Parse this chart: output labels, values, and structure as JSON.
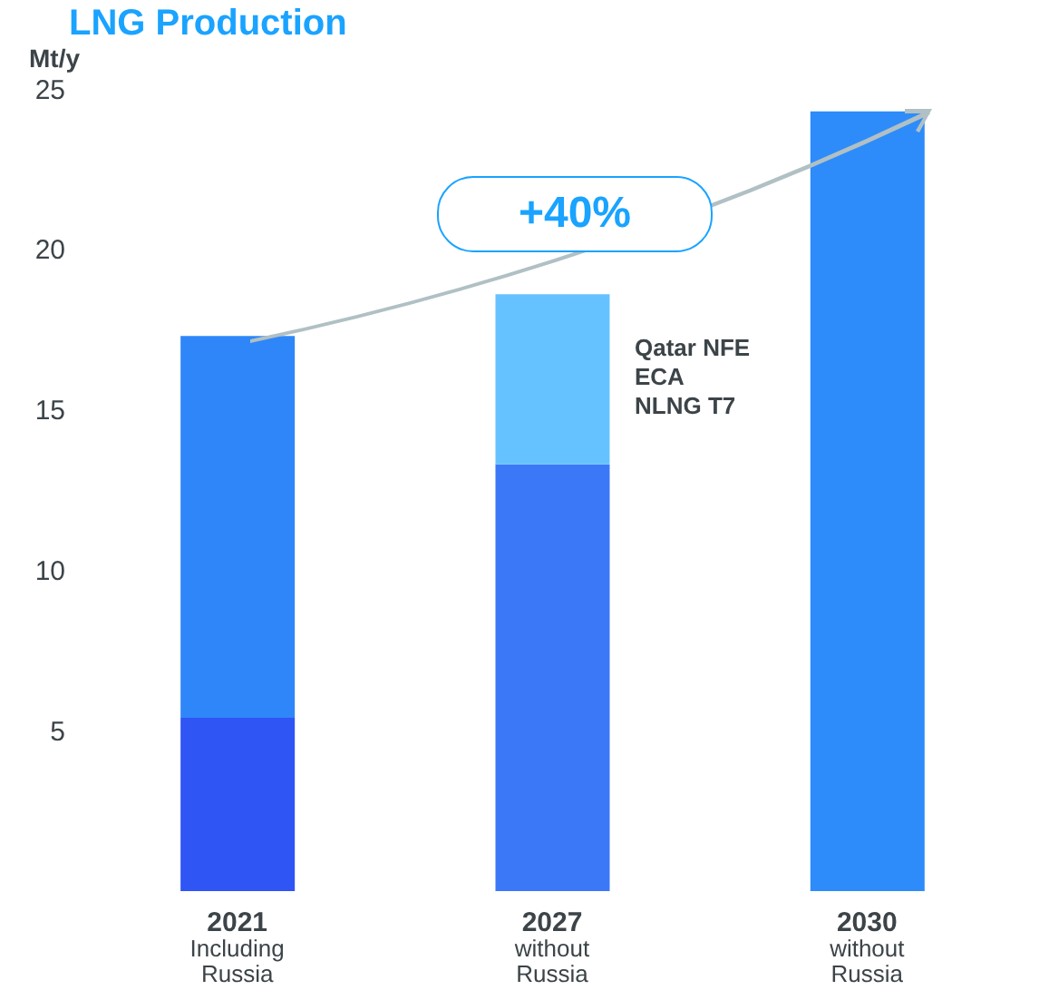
{
  "chart_data": {
    "type": "bar",
    "title": "LNG Production",
    "ylabel": "Mt/y",
    "stacked": true,
    "categories": [
      "2021\nIncluding\nRussia",
      "2027\nwithout\nRussia",
      "2030\nwithout\nRussia"
    ],
    "series": [
      {
        "colors": [
          "#2f55f5",
          "#3a78f8",
          "#2d8cf9"
        ],
        "values": [
          5.4,
          13.3,
          24.3
        ]
      },
      {
        "colors": [
          "#2f86f8",
          "#66c2ff",
          null
        ],
        "values": [
          11.9,
          5.3,
          null
        ]
      }
    ],
    "ylim": [
      0,
      25
    ],
    "yticks": [
      5,
      10,
      15,
      20,
      25
    ],
    "annotations": [
      "+40%",
      "Qatar NFE\nECA\nNLNG T7"
    ]
  }
}
